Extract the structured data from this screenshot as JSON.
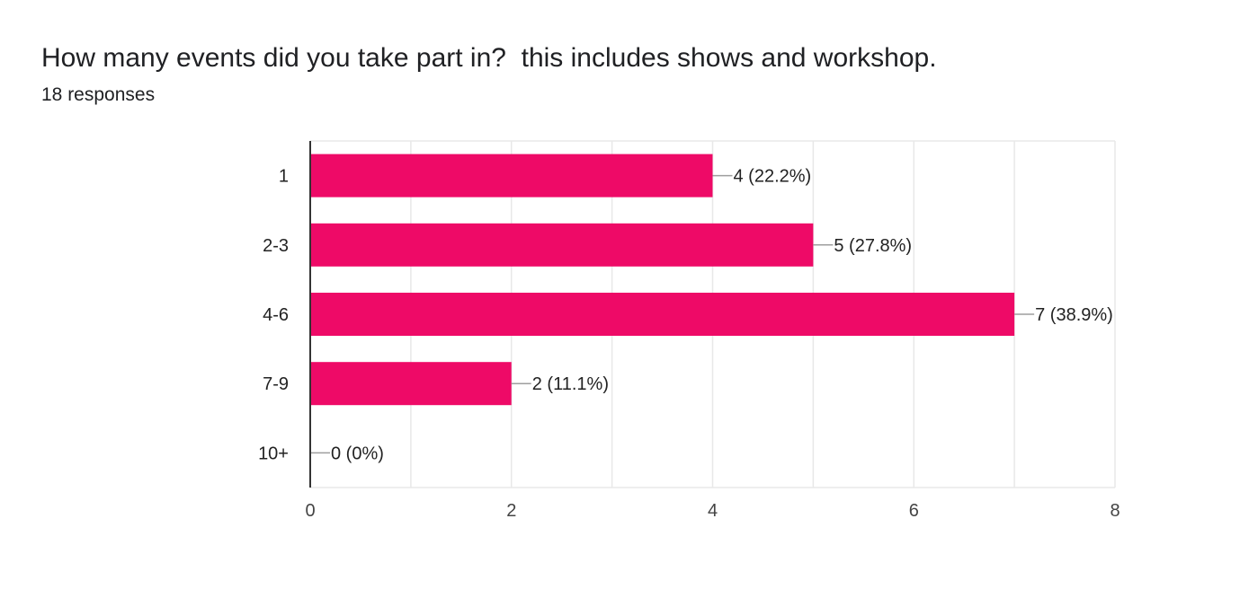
{
  "question": {
    "title": "How many events did you take part in?  this includes shows and workshop.",
    "responses_text": "18 responses"
  },
  "colors": {
    "bar": "#ee0a67",
    "grid": "#e8e8e8",
    "axis": "#333333",
    "leader": "#9e9e9e",
    "text": "#222222",
    "tick_text": "#444444"
  },
  "chart_data": {
    "type": "bar",
    "orientation": "horizontal",
    "categories": [
      "1",
      "2-3",
      "4-6",
      "7-9",
      "10+"
    ],
    "values": [
      4,
      5,
      7,
      2,
      0
    ],
    "data_labels": [
      "4 (22.2%)",
      "5 (27.8%)",
      "7 (38.9%)",
      "2 (11.1%)",
      "0 (0%)"
    ],
    "xlim": [
      0,
      8
    ],
    "x_ticks": [
      0,
      2,
      4,
      6,
      8
    ],
    "minor_grid_step": 1,
    "grid": true,
    "legend": "none"
  }
}
